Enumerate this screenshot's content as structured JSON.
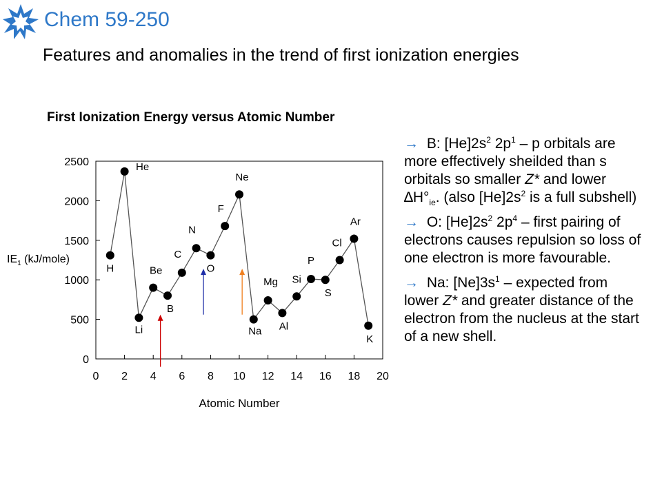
{
  "header": {
    "course": "Chem 59-250",
    "title": "Features and anomalies in the trend of first ionization energies"
  },
  "chart_data": {
    "type": "line",
    "title": "First Ionization Energy versus Atomic Number",
    "xlabel": "Atomic Number",
    "ylabel": "IE1 (kJ/mole)",
    "ylabel_main": "IE",
    "ylabel_sub": "1",
    "ylabel_rest": " (kJ/mole)",
    "xlim": [
      0,
      20
    ],
    "ylim": [
      0,
      2500
    ],
    "xticks": [
      0,
      2,
      4,
      6,
      8,
      10,
      12,
      14,
      16,
      18,
      20
    ],
    "yticks": [
      0,
      500,
      1000,
      1500,
      2000,
      2500
    ],
    "grid": false,
    "series": [
      {
        "x": [
          1,
          2,
          3,
          4,
          5,
          6,
          7,
          8,
          9,
          10,
          11,
          12,
          13,
          14,
          15,
          16,
          17,
          18,
          19
        ],
        "values": [
          1310,
          2370,
          520,
          900,
          800,
          1090,
          1400,
          1310,
          1680,
          2080,
          500,
          740,
          580,
          790,
          1010,
          1000,
          1250,
          1520,
          420
        ],
        "labels": [
          "H",
          "He",
          "Li",
          "Be",
          "B",
          "C",
          "N",
          "O",
          "F",
          "Ne",
          "Na",
          "Mg",
          "Al",
          "Si",
          "P",
          "S",
          "Cl",
          "Ar",
          "K"
        ]
      }
    ],
    "annotations": [
      {
        "type": "arrow",
        "color": "#cc0000",
        "x": 4.5,
        "y_from": -100,
        "y_to": 560
      },
      {
        "type": "arrow",
        "color": "#1f2fa8",
        "x": 7.5,
        "y_from": 560,
        "y_to": 1140
      },
      {
        "type": "arrow",
        "color": "#f08020",
        "x": 10.2,
        "y_from": 560,
        "y_to": 1140
      }
    ]
  },
  "notes": [
    {
      "bullet": "→",
      "parts": [
        {
          "t": " B: [He]2s"
        },
        {
          "sup": "2"
        },
        {
          "t": " 2p"
        },
        {
          "sup": "1"
        },
        {
          "t": " – p orbitals are more effectively sheilded than s orbitals so smaller "
        },
        {
          "i": "Z*"
        },
        {
          "t": " and lower ∆H°"
        },
        {
          "sub": "ie"
        },
        {
          "t": ". (also [He]2s"
        },
        {
          "sup": "2"
        },
        {
          "t": " is a full subshell)"
        }
      ]
    },
    {
      "bullet": "→",
      "parts": [
        {
          "t": " O: [He]2s"
        },
        {
          "sup": "2"
        },
        {
          "t": " 2p"
        },
        {
          "sup": "4"
        },
        {
          "t": " – first pairing of electrons causes repulsion so loss of one electron is more favourable."
        }
      ]
    },
    {
      "bullet": "→",
      "parts": [
        {
          "t": " Na: [Ne]3s"
        },
        {
          "sup": "1"
        },
        {
          "t": " – expected from lower "
        },
        {
          "i": "Z*"
        },
        {
          "t": " and greater distance of the electron from the nucleus at the start of a new shell."
        }
      ]
    }
  ],
  "colors": {
    "course": "#2e78c8",
    "logo": "#2e78c8",
    "bullet": "#2e78c8",
    "line": "#555555",
    "marker": "#000000"
  }
}
